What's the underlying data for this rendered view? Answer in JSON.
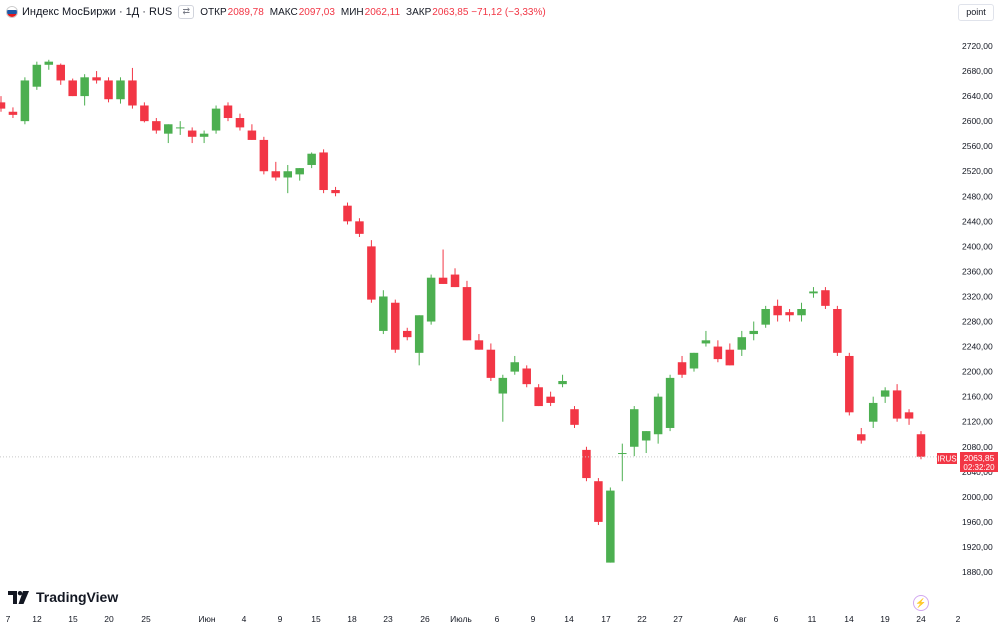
{
  "header": {
    "title": "Индекс МосБиржи · 1Д · RUS",
    "open_label": "ОТКР",
    "open_value": "2089,78",
    "high_label": "МАКС",
    "high_value": "2097,03",
    "low_label": "МИН",
    "low_value": "2062,11",
    "close_label": "ЗАКР",
    "close_value": "2063,85 −71,12 (−3,33%)"
  },
  "scale_button": "point",
  "logo_text": "TradingView",
  "price_tag": {
    "symbol": "IRUS",
    "price": "2063,85",
    "time": "02:32:20"
  },
  "colors": {
    "up": "#4caf50",
    "down": "#f23645",
    "wick": "#787b86"
  },
  "chart_data": {
    "type": "candlestick",
    "y_range": [
      1850,
      2760
    ],
    "y_ticks": [
      "2720,00",
      "2680,00",
      "2640,00",
      "2600,00",
      "2560,00",
      "2520,00",
      "2480,00",
      "2440,00",
      "2400,00",
      "2360,00",
      "2320,00",
      "2280,00",
      "2240,00",
      "2200,00",
      "2160,00",
      "2120,00",
      "2080,00",
      "2040,00",
      "2000,00",
      "1960,00",
      "1920,00",
      "1880,00"
    ],
    "x_ticks": [
      "7",
      "12",
      "15",
      "20",
      "25",
      "Июн",
      "4",
      "9",
      "15",
      "18",
      "23",
      "26",
      "Июль",
      "6",
      "9",
      "14",
      "17",
      "22",
      "27",
      "Авг",
      "6",
      "11",
      "14",
      "19",
      "24",
      "2"
    ],
    "last_price": 2063.85,
    "candles": [
      [
        2630,
        2640,
        2615,
        2620
      ],
      [
        2615,
        2622,
        2605,
        2610
      ],
      [
        2600,
        2670,
        2595,
        2665
      ],
      [
        2655,
        2695,
        2650,
        2690
      ],
      [
        2690,
        2698,
        2682,
        2695
      ],
      [
        2690,
        2692,
        2658,
        2665
      ],
      [
        2665,
        2668,
        2640,
        2640
      ],
      [
        2640,
        2675,
        2625,
        2670
      ],
      [
        2670,
        2680,
        2660,
        2665
      ],
      [
        2665,
        2670,
        2630,
        2635
      ],
      [
        2635,
        2670,
        2628,
        2665
      ],
      [
        2665,
        2685,
        2620,
        2625
      ],
      [
        2625,
        2630,
        2598,
        2600
      ],
      [
        2600,
        2605,
        2580,
        2585
      ],
      [
        2580,
        2595,
        2565,
        2595
      ],
      [
        2590,
        2600,
        2578,
        2590
      ],
      [
        2585,
        2590,
        2565,
        2575
      ],
      [
        2575,
        2585,
        2565,
        2580
      ],
      [
        2585,
        2625,
        2580,
        2620
      ],
      [
        2625,
        2630,
        2600,
        2605
      ],
      [
        2605,
        2612,
        2585,
        2590
      ],
      [
        2585,
        2595,
        2570,
        2570
      ],
      [
        2570,
        2575,
        2515,
        2520
      ],
      [
        2520,
        2535,
        2505,
        2510
      ],
      [
        2510,
        2530,
        2485,
        2520
      ],
      [
        2515,
        2525,
        2505,
        2525
      ],
      [
        2530,
        2550,
        2525,
        2548
      ],
      [
        2550,
        2555,
        2485,
        2490
      ],
      [
        2490,
        2495,
        2480,
        2485
      ],
      [
        2465,
        2470,
        2435,
        2440
      ],
      [
        2440,
        2445,
        2415,
        2420
      ],
      [
        2400,
        2410,
        2310,
        2315
      ],
      [
        2265,
        2330,
        2260,
        2320
      ],
      [
        2310,
        2315,
        2230,
        2235
      ],
      [
        2265,
        2270,
        2250,
        2255
      ],
      [
        2230,
        2290,
        2210,
        2290
      ],
      [
        2280,
        2355,
        2275,
        2350
      ],
      [
        2350,
        2395,
        2340,
        2340
      ],
      [
        2355,
        2365,
        2335,
        2335
      ],
      [
        2335,
        2345,
        2250,
        2250
      ],
      [
        2250,
        2260,
        2235,
        2235
      ],
      [
        2235,
        2245,
        2185,
        2190
      ],
      [
        2165,
        2195,
        2120,
        2190
      ],
      [
        2200,
        2225,
        2195,
        2215
      ],
      [
        2205,
        2210,
        2175,
        2180
      ],
      [
        2175,
        2180,
        2145,
        2145
      ],
      [
        2160,
        2168,
        2145,
        2150
      ],
      [
        2180,
        2195,
        2175,
        2185
      ],
      [
        2140,
        2145,
        2110,
        2115
      ],
      [
        2075,
        2080,
        2025,
        2030
      ],
      [
        2025,
        2030,
        1955,
        1960
      ],
      [
        1895,
        2015,
        1895,
        2010
      ],
      [
        2070,
        2085,
        2025,
        2070
      ],
      [
        2080,
        2145,
        2065,
        2140
      ],
      [
        2090,
        2105,
        2070,
        2105
      ],
      [
        2100,
        2165,
        2085,
        2160
      ],
      [
        2110,
        2195,
        2105,
        2190
      ],
      [
        2215,
        2225,
        2190,
        2195
      ],
      [
        2205,
        2230,
        2200,
        2230
      ],
      [
        2245,
        2265,
        2240,
        2250
      ],
      [
        2240,
        2250,
        2215,
        2220
      ],
      [
        2235,
        2245,
        2210,
        2210
      ],
      [
        2235,
        2265,
        2225,
        2255
      ],
      [
        2260,
        2280,
        2250,
        2265
      ],
      [
        2275,
        2305,
        2270,
        2300
      ],
      [
        2305,
        2315,
        2280,
        2290
      ],
      [
        2295,
        2300,
        2280,
        2290
      ],
      [
        2290,
        2310,
        2280,
        2300
      ],
      [
        2325,
        2335,
        2318,
        2328
      ],
      [
        2330,
        2335,
        2300,
        2305
      ],
      [
        2300,
        2305,
        2225,
        2230
      ],
      [
        2225,
        2230,
        2130,
        2135
      ],
      [
        2100,
        2110,
        2085,
        2090
      ],
      [
        2120,
        2160,
        2110,
        2150
      ],
      [
        2160,
        2175,
        2150,
        2170
      ],
      [
        2170,
        2180,
        2120,
        2125
      ],
      [
        2135,
        2140,
        2115,
        2125
      ],
      [
        2100,
        2105,
        2060,
        2064
      ]
    ]
  }
}
